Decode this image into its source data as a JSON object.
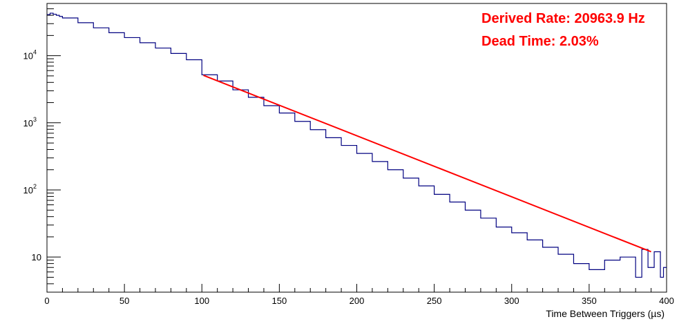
{
  "chart_data": {
    "type": "line",
    "xlabel": "Time Between Triggers (µs)",
    "xlim": [
      0,
      400
    ],
    "ylim": [
      3,
      60000
    ],
    "yscale": "log",
    "grid": false,
    "x_ticks": [
      "0",
      "50",
      "100",
      "150",
      "200",
      "250",
      "300",
      "350",
      "400"
    ],
    "y_ticks": [
      {
        "value": 10,
        "base": "10",
        "exp": ""
      },
      {
        "value": 100,
        "base": "10",
        "exp": "2"
      },
      {
        "value": 1000,
        "base": "10",
        "exp": "3"
      },
      {
        "value": 10000,
        "base": "10",
        "exp": "4"
      }
    ],
    "annotations": [
      "Derived Rate: 20963.9 Hz",
      "Dead Time: 2.03%"
    ],
    "series": [
      {
        "kind": "histogram",
        "color": "#000080",
        "bin_width": 2,
        "x": [
          0,
          2,
          4,
          6,
          8,
          10,
          20,
          30,
          40,
          50,
          60,
          70,
          80,
          90,
          100,
          110,
          120,
          130,
          140,
          150,
          160,
          170,
          180,
          190,
          200,
          210,
          220,
          230,
          240,
          250,
          260,
          270,
          280,
          290,
          300,
          310,
          320,
          330,
          340,
          350,
          360,
          370,
          380,
          384,
          388,
          392,
          396,
          398
        ],
        "y": [
          41000,
          43000,
          41500,
          40000,
          38500,
          36500,
          31000,
          26000,
          22000,
          18600,
          15600,
          13000,
          10800,
          8700,
          5200,
          4200,
          3100,
          2400,
          1800,
          1400,
          1050,
          790,
          600,
          460,
          350,
          265,
          200,
          150,
          115,
          86,
          66,
          50,
          38,
          28,
          23,
          18,
          14,
          11,
          8,
          6.5,
          9,
          10,
          5,
          13,
          7,
          12,
          5,
          7
        ]
      },
      {
        "kind": "fit",
        "color": "#ff0000",
        "x": [
          101,
          390
        ],
        "y": [
          5100,
          12
        ]
      }
    ]
  }
}
